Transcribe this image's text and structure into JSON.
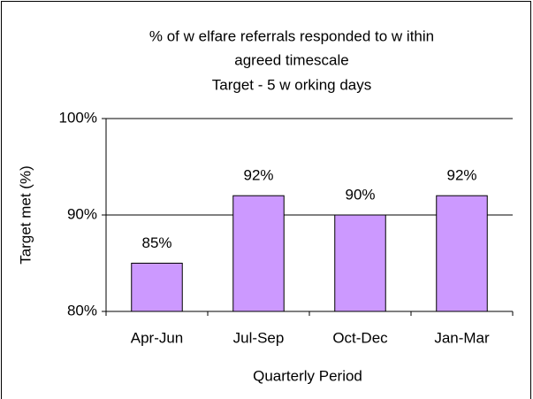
{
  "chart_data": {
    "type": "bar",
    "title": [
      "% of w elfare referrals responded to w ithin",
      "agreed timescale",
      "Target - 5 w orking days"
    ],
    "x_label": "Quarterly Period",
    "y_label": "Target met (%)",
    "categories": [
      "Apr-Jun",
      "Jul-Sep",
      "Oct-Dec",
      "Jan-Mar"
    ],
    "values": [
      85,
      92,
      90,
      92
    ],
    "value_labels": [
      "85%",
      "92%",
      "90%",
      "92%"
    ],
    "color": "#cc99ff",
    "ylim": [
      80,
      100
    ],
    "yticks": [
      {
        "value": 80,
        "label": "80%"
      },
      {
        "value": 90,
        "label": "90%"
      },
      {
        "value": 100,
        "label": "100%"
      }
    ],
    "grid": true
  }
}
